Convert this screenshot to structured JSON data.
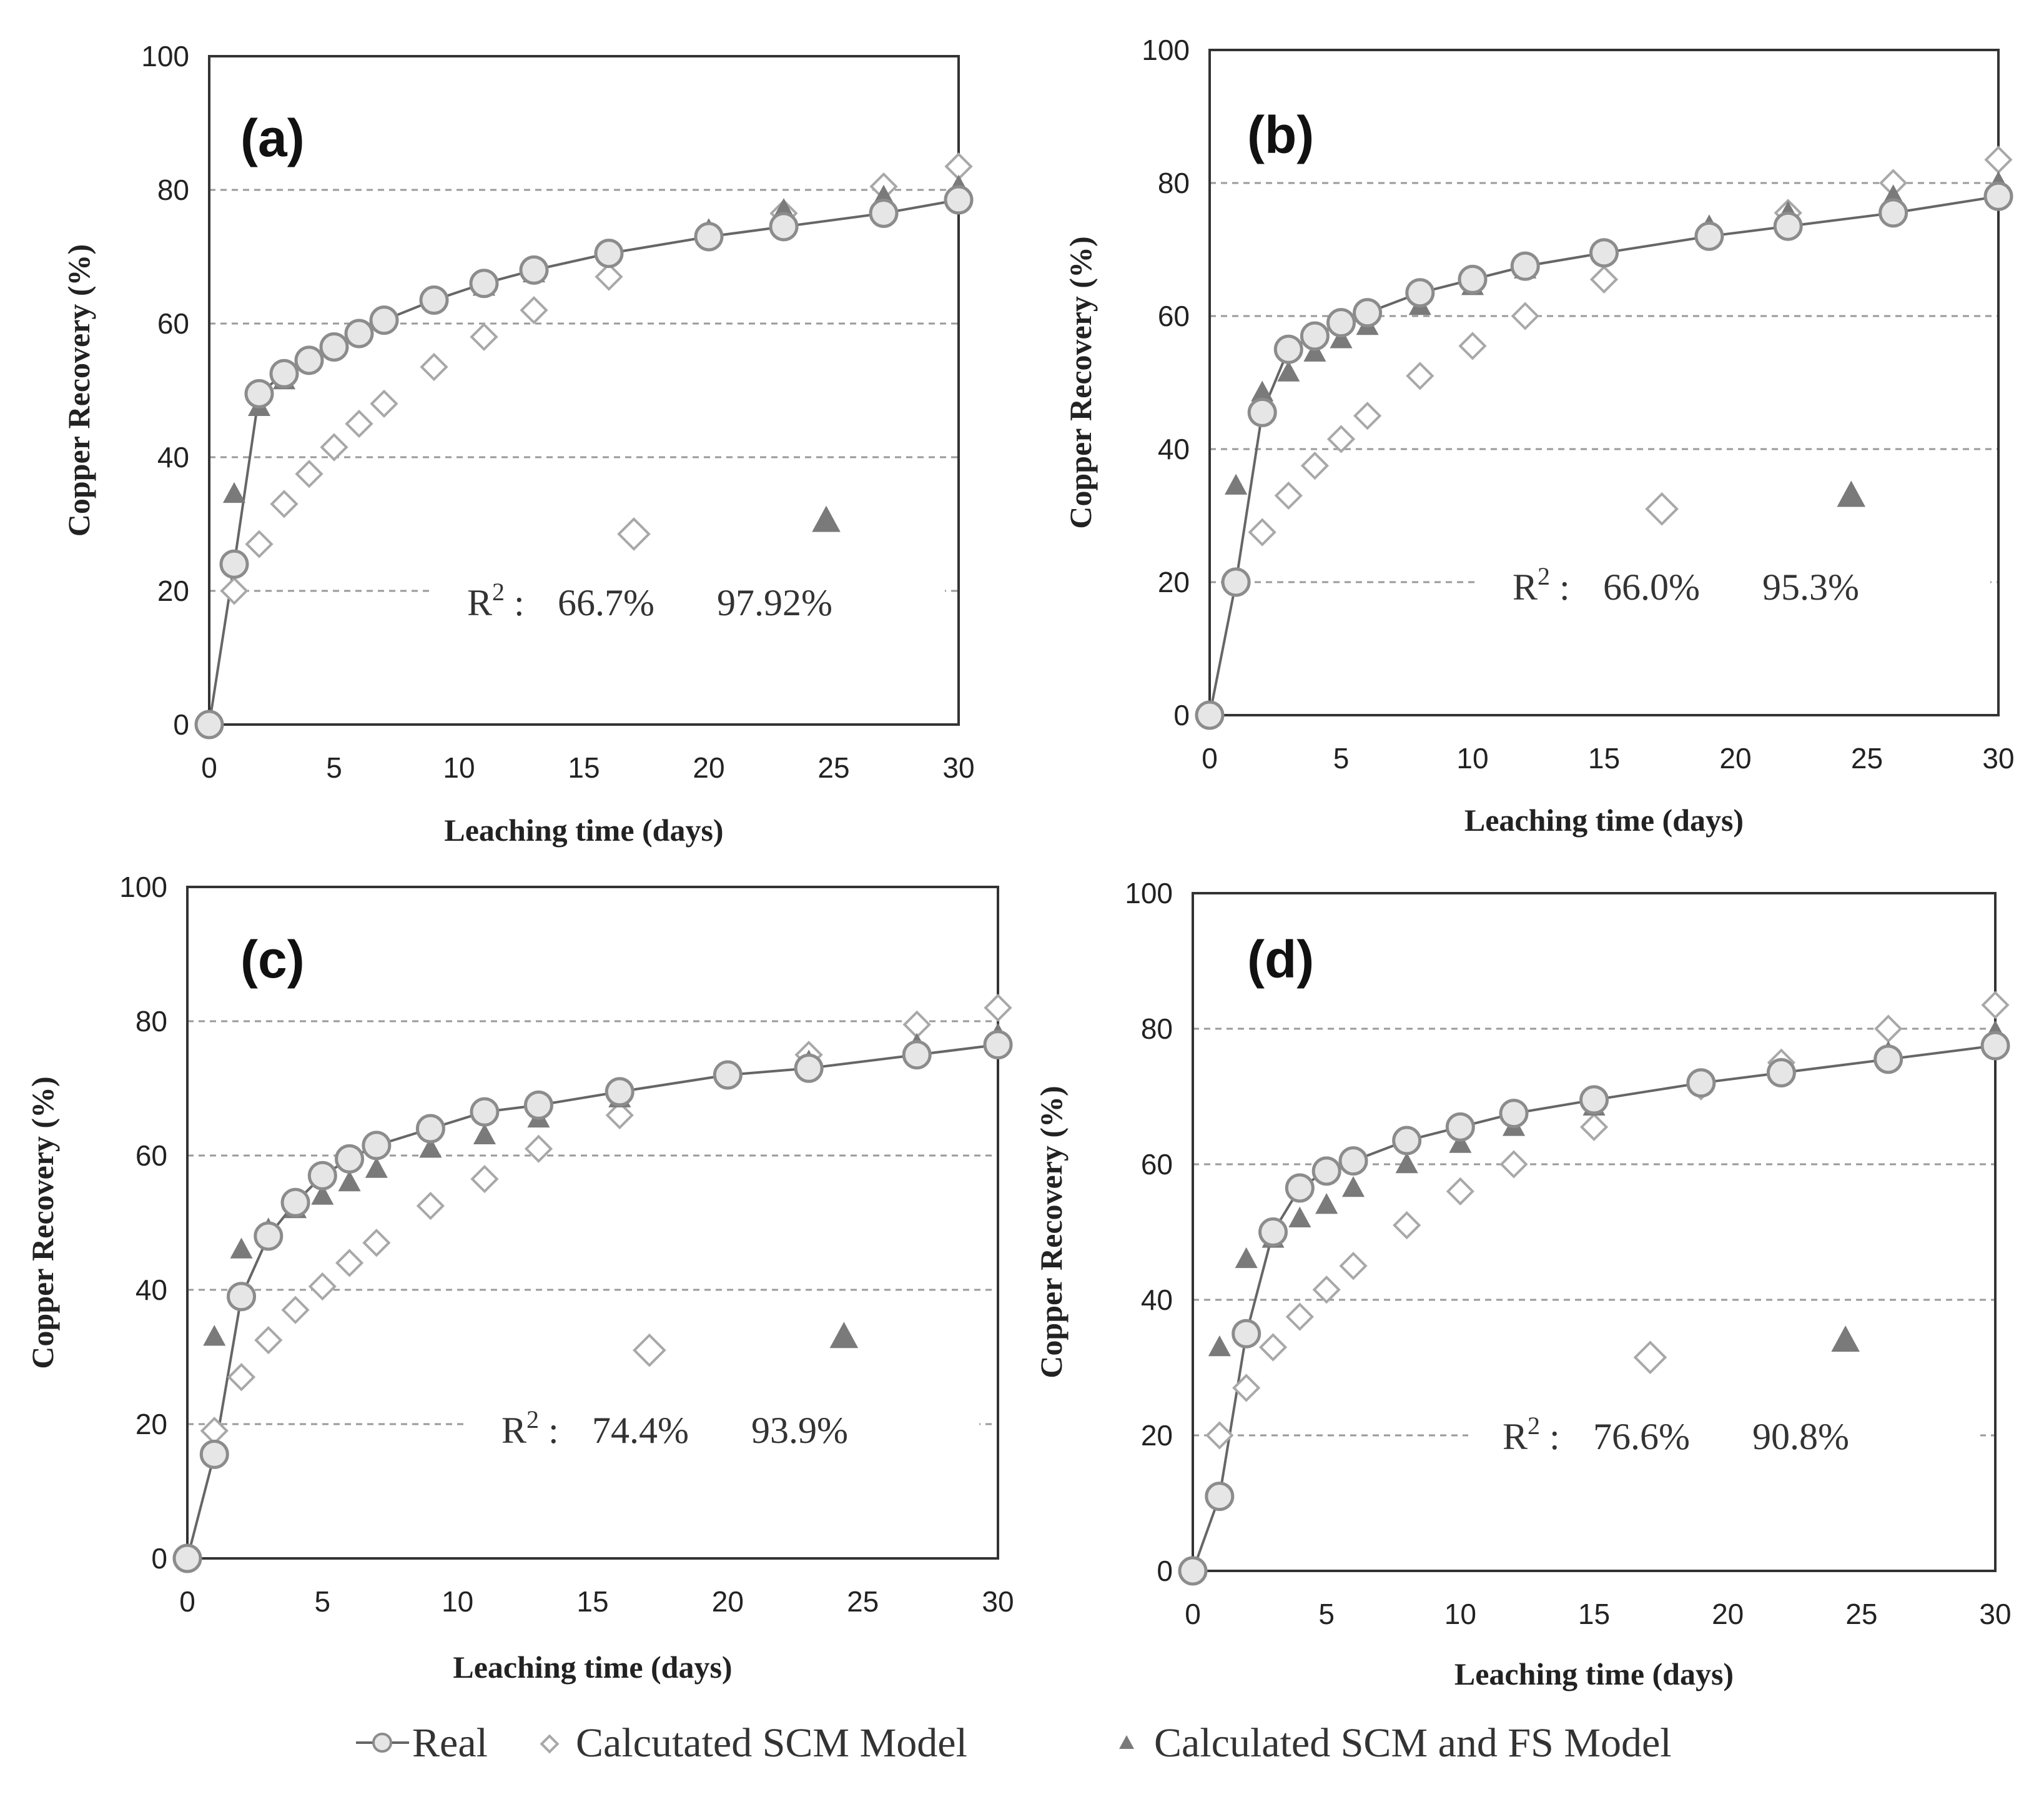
{
  "colors": {
    "real_stroke": "#8c8c8c",
    "real_fill": "#e6e6e6",
    "line": "#666666",
    "scm_stroke": "#a8a8a8",
    "fs_fill": "#7a7a7a",
    "grid": "#9a9a9a",
    "frame": "#333333"
  },
  "legend": {
    "real": "Real",
    "scm": "Calcutated SCM Model",
    "fs": "Calculated SCM and FS Model"
  },
  "chart_data": [
    {
      "type": "line",
      "panel": "(a)",
      "xlabel": "Leaching time (days)",
      "ylabel": "Copper Recovery (%)",
      "xlim": [
        0,
        30
      ],
      "ylim": [
        0,
        100
      ],
      "xticks": [
        0,
        5,
        10,
        15,
        20,
        25,
        30
      ],
      "yticks": [
        0,
        20,
        40,
        60,
        80,
        100
      ],
      "grid": "horizontal dashed",
      "r2": {
        "label": "R",
        "sup": "2",
        "sep": " :",
        "scm": "66.7%",
        "fs": "97.92%",
        "scm_marker_x": 17,
        "scm_marker_y": 28.5,
        "fs_marker_x": 24.7,
        "fs_marker_y": 30.5
      },
      "series": [
        {
          "name": "Real",
          "marker": "circle",
          "x": [
            0,
            1,
            2,
            3,
            4,
            5,
            6,
            7,
            9,
            11,
            13,
            16,
            20,
            23,
            27,
            30
          ],
          "y": [
            0,
            24,
            49.5,
            52.5,
            54.5,
            56.5,
            58.5,
            60.5,
            63.5,
            66,
            68,
            70.5,
            73,
            74.5,
            76.5,
            78.5
          ]
        },
        {
          "name": "Calcutated SCM Model",
          "marker": "diamond",
          "x": [
            1,
            2,
            3,
            4,
            5,
            6,
            7,
            9,
            11,
            13,
            16,
            20,
            23,
            27,
            30
          ],
          "y": [
            20,
            27,
            33,
            37.5,
            41.5,
            45,
            48,
            53.5,
            58,
            62,
            67,
            73,
            76.5,
            80.5,
            83.5
          ]
        },
        {
          "name": "Calculated SCM and FS Model",
          "marker": "triangle",
          "x": [
            1,
            2,
            3,
            4,
            5,
            6,
            7,
            9,
            11,
            13,
            16,
            20,
            23,
            27,
            30
          ],
          "y": [
            34.5,
            47.5,
            51.5,
            54.5,
            56.5,
            58.5,
            60.5,
            63.5,
            65.5,
            67.5,
            70.5,
            74,
            77,
            79,
            80.5
          ]
        }
      ]
    },
    {
      "type": "line",
      "panel": "(b)",
      "xlabel": "Leaching time (days)",
      "ylabel": "Copper Recovery (%)",
      "xlim": [
        0,
        30
      ],
      "ylim": [
        0,
        100
      ],
      "xticks": [
        0,
        5,
        10,
        15,
        20,
        25,
        30
      ],
      "yticks": [
        0,
        20,
        40,
        60,
        80,
        100
      ],
      "grid": "horizontal dashed",
      "r2": {
        "label": "R",
        "sup": "2",
        "sep": " :",
        "scm": "66.0%",
        "fs": "95.3%",
        "scm_marker_x": 17.2,
        "scm_marker_y": 31,
        "fs_marker_x": 24.4,
        "fs_marker_y": 33
      },
      "series": [
        {
          "name": "Real",
          "marker": "circle",
          "x": [
            0,
            1,
            2,
            3,
            4,
            5,
            6,
            8,
            10,
            12,
            15,
            19,
            22,
            26,
            30
          ],
          "y": [
            0,
            20,
            45.5,
            55,
            57,
            59,
            60.5,
            63.5,
            65.5,
            67.5,
            69.5,
            72,
            73.5,
            75.5,
            78
          ]
        },
        {
          "name": "Calcutated SCM Model",
          "marker": "diamond",
          "x": [
            1,
            2,
            3,
            4,
            5,
            6,
            8,
            10,
            12,
            15,
            19,
            22,
            26,
            30
          ],
          "y": [
            20,
            27.5,
            33,
            37.5,
            41.5,
            45,
            51,
            55.5,
            60,
            65.5,
            72,
            75.5,
            80,
            83.5
          ]
        },
        {
          "name": "Calculated SCM and FS Model",
          "marker": "triangle",
          "x": [
            1,
            2,
            3,
            4,
            5,
            6,
            8,
            10,
            12,
            15,
            19,
            22,
            26,
            30
          ],
          "y": [
            34.5,
            48.5,
            51.5,
            54.5,
            56.5,
            58.5,
            61.5,
            64.5,
            67,
            70,
            73.5,
            75.5,
            78,
            80
          ]
        }
      ]
    },
    {
      "type": "line",
      "panel": "(c)",
      "xlabel": "Leaching time (days)",
      "ylabel": "Copper Recovery (%)",
      "xlim": [
        0,
        30
      ],
      "ylim": [
        0,
        100
      ],
      "xticks": [
        0,
        5,
        10,
        15,
        20,
        25,
        30
      ],
      "yticks": [
        0,
        20,
        40,
        60,
        80,
        100
      ],
      "grid": "horizontal dashed",
      "r2": {
        "label": "R",
        "sup": "2",
        "sep": " :",
        "scm": "74.4%",
        "fs": "93.9%",
        "scm_marker_x": 17.1,
        "scm_marker_y": 31,
        "fs_marker_x": 24.3,
        "fs_marker_y": 33
      },
      "series": [
        {
          "name": "Real",
          "marker": "circle",
          "x": [
            0,
            1,
            2,
            3,
            4,
            5,
            6,
            7,
            9,
            11,
            13,
            16,
            20,
            23,
            27,
            30
          ],
          "y": [
            0,
            15.5,
            39,
            48,
            53,
            57,
            59.5,
            61.5,
            64,
            66.5,
            67.5,
            69.5,
            72,
            73,
            75,
            76.5
          ]
        },
        {
          "name": "Calcutated SCM Model",
          "marker": "diamond",
          "x": [
            1,
            2,
            3,
            4,
            5,
            6,
            7,
            9,
            11,
            13,
            16,
            20,
            23,
            27,
            30
          ],
          "y": [
            19,
            27,
            32.5,
            37,
            40.5,
            44,
            47,
            52.5,
            56.5,
            61,
            66,
            72,
            75,
            79.5,
            82
          ]
        },
        {
          "name": "Calculated SCM and FS Model",
          "marker": "triangle",
          "x": [
            1,
            2,
            3,
            4,
            5,
            6,
            7,
            9,
            11,
            13,
            16,
            20,
            23,
            27,
            30
          ],
          "y": [
            33,
            46,
            49,
            52,
            54,
            56,
            58,
            61,
            63,
            65.5,
            68.5,
            72,
            74,
            76.5,
            78
          ]
        }
      ]
    },
    {
      "type": "line",
      "panel": "(d)",
      "xlabel": "Leaching time (days)",
      "ylabel": "Copper Recovery (%)",
      "xlim": [
        0,
        30
      ],
      "ylim": [
        0,
        100
      ],
      "xticks": [
        0,
        5,
        10,
        15,
        20,
        25,
        30
      ],
      "yticks": [
        0,
        20,
        40,
        60,
        80,
        100
      ],
      "grid": "horizontal dashed",
      "r2": {
        "label": "R",
        "sup": "2",
        "sep": " :",
        "scm": "76.6%",
        "fs": "90.8%",
        "scm_marker_x": 17.1,
        "scm_marker_y": 31.5,
        "fs_marker_x": 24.4,
        "fs_marker_y": 34
      },
      "series": [
        {
          "name": "Real",
          "marker": "circle",
          "x": [
            0,
            1,
            2,
            3,
            4,
            5,
            6,
            8,
            10,
            12,
            15,
            19,
            22,
            26,
            30
          ],
          "y": [
            0,
            11,
            35,
            50,
            56.5,
            59,
            60.5,
            63.5,
            65.5,
            67.5,
            69.5,
            72,
            73.5,
            75.5,
            77.5
          ]
        },
        {
          "name": "Calcutated SCM Model",
          "marker": "diamond",
          "x": [
            1,
            2,
            3,
            4,
            5,
            6,
            8,
            10,
            12,
            15,
            19,
            22,
            26,
            30
          ],
          "y": [
            20,
            27,
            33,
            37.5,
            41.5,
            45,
            51,
            56,
            60,
            65.5,
            71.5,
            75,
            80,
            83.5
          ]
        },
        {
          "name": "Calculated SCM and FS Model",
          "marker": "triangle",
          "x": [
            1,
            2,
            3,
            4,
            5,
            6,
            8,
            10,
            12,
            15,
            19,
            22,
            26,
            30
          ],
          "y": [
            33,
            46,
            49,
            52,
            54,
            56.5,
            60,
            63,
            65.5,
            68.5,
            72,
            74,
            76.5,
            79.5
          ]
        }
      ]
    }
  ]
}
